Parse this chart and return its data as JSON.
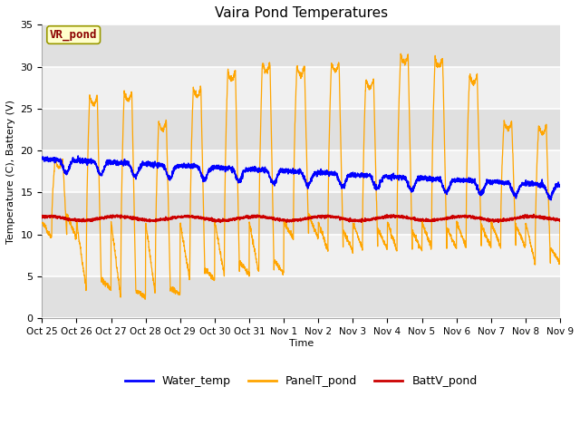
{
  "title": "Vaira Pond Temperatures",
  "xlabel": "Time",
  "ylabel": "Temperature (C), Battery (V)",
  "ylim": [
    0,
    35
  ],
  "yticks": [
    0,
    5,
    10,
    15,
    20,
    25,
    30,
    35
  ],
  "xtick_labels": [
    "Oct 25",
    "Oct 26",
    "Oct 27",
    "Oct 28",
    "Oct 29",
    "Oct 30",
    "Oct 31",
    "Nov 1",
    "Nov 2",
    "Nov 3",
    "Nov 4",
    "Nov 5",
    "Nov 6",
    "Nov 7",
    "Nov 8",
    "Nov 9"
  ],
  "water_color": "#0000ff",
  "panel_color": "#ffa500",
  "batt_color": "#cc0000",
  "fig_facecolor": "#ffffff",
  "plot_bg_light": "#f0f0f0",
  "plot_bg_dark": "#e0e0e0",
  "legend_labels": [
    "Water_temp",
    "PanelT_pond",
    "BattV_pond"
  ],
  "annotation_text": "VR_pond",
  "annotation_color": "#8b0000",
  "annotation_bg": "#ffffcc",
  "title_fontsize": 11,
  "axis_fontsize": 8,
  "legend_fontsize": 9
}
